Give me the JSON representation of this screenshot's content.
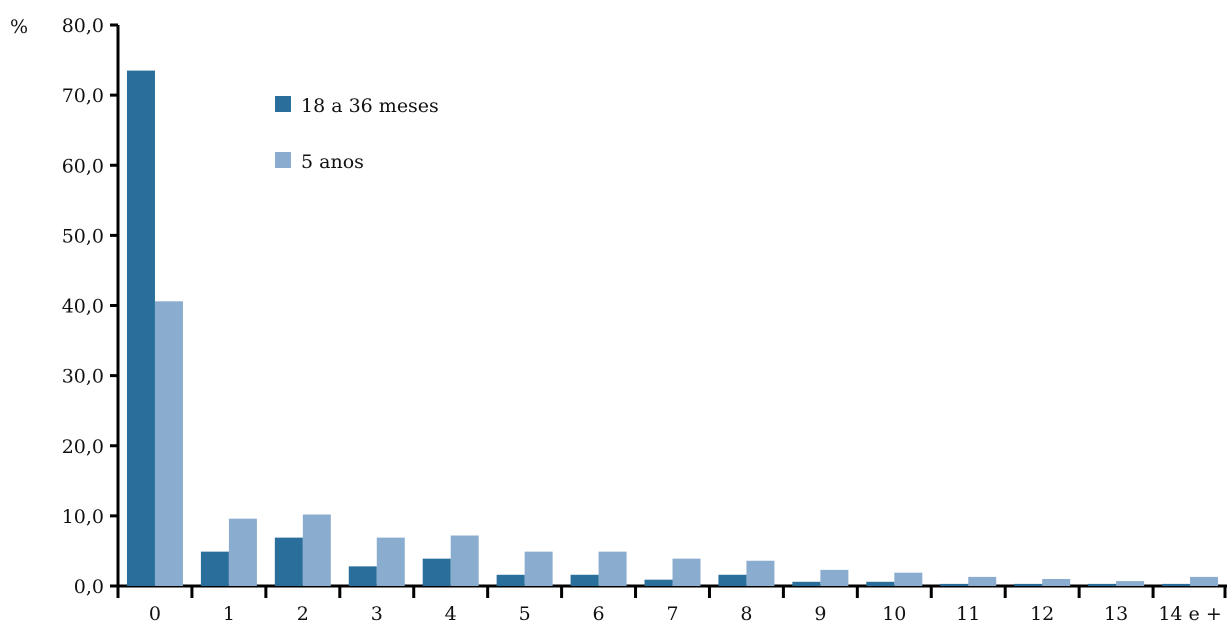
{
  "chart_data": {
    "type": "bar",
    "y_unit_label": "%",
    "categories": [
      "0",
      "1",
      "2",
      "3",
      "4",
      "5",
      "6",
      "7",
      "8",
      "9",
      "10",
      "11",
      "12",
      "13",
      "14 e +"
    ],
    "series": [
      {
        "name": "18 a 36 meses",
        "color": "#2a6f9b",
        "values": [
          73.5,
          4.9,
          6.9,
          2.8,
          3.9,
          1.6,
          1.6,
          0.9,
          1.6,
          0.6,
          0.6,
          0.3,
          0.3,
          0.3,
          0.3
        ]
      },
      {
        "name": "5 anos",
        "color": "#8aadcf",
        "values": [
          40.6,
          9.6,
          10.2,
          6.9,
          7.2,
          4.9,
          4.9,
          3.9,
          3.6,
          2.3,
          1.9,
          1.3,
          1.0,
          0.7,
          1.3
        ]
      }
    ],
    "ylim": [
      0,
      80
    ],
    "yticks": [
      "0,0",
      "10,0",
      "20,0",
      "30,0",
      "40,0",
      "50,0",
      "60,0",
      "70,0",
      "80,0"
    ],
    "legend_position": "upper-left",
    "grid": false
  }
}
